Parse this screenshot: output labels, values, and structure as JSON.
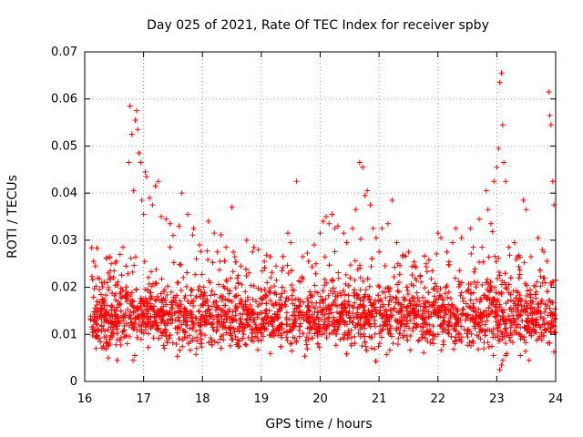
{
  "chart_data": {
    "type": "scatter",
    "title": "Day 025 of 2021, Rate Of TEC Index for receiver spby",
    "xlabel": "GPS time / hours",
    "ylabel": "ROTI / TECUs",
    "xlim": [
      16,
      24
    ],
    "ylim": [
      0,
      0.07
    ],
    "xticks": [
      16,
      17,
      18,
      19,
      20,
      21,
      22,
      23,
      24
    ],
    "xtick_labels": [
      "16",
      "17",
      "18",
      "19",
      "20",
      "21",
      "22",
      "23",
      "24"
    ],
    "yticks": [
      0,
      0.01,
      0.02,
      0.03,
      0.04,
      0.05,
      0.06,
      0.07
    ],
    "ytick_labels": [
      "0",
      "0.01",
      "0.02",
      "0.03",
      "0.04",
      "0.05",
      "0.06",
      "0.07"
    ],
    "grid": true,
    "marker": "plus",
    "color": "#ff0000",
    "series": [
      {
        "name": "ROTI",
        "points": [
          [
            16.15,
            0.0255
          ],
          [
            16.18,
            0.0245
          ],
          [
            16.22,
            0.022
          ],
          [
            16.25,
            0.0195
          ],
          [
            16.3,
            0.0175
          ],
          [
            16.38,
            0.021
          ],
          [
            16.42,
            0.0265
          ],
          [
            16.45,
            0.025
          ],
          [
            16.5,
            0.0235
          ],
          [
            16.55,
            0.0205
          ],
          [
            16.6,
            0.027
          ],
          [
            16.65,
            0.0285
          ],
          [
            16.7,
            0.0245
          ],
          [
            16.75,
            0.0465
          ],
          [
            16.77,
            0.0585
          ],
          [
            16.8,
            0.0525
          ],
          [
            16.83,
            0.0405
          ],
          [
            16.86,
            0.0555
          ],
          [
            16.88,
            0.0575
          ],
          [
            16.9,
            0.0535
          ],
          [
            16.92,
            0.0485
          ],
          [
            16.95,
            0.0465
          ],
          [
            16.97,
            0.0385
          ],
          [
            17.0,
            0.0355
          ],
          [
            17.03,
            0.0445
          ],
          [
            17.05,
            0.0435
          ],
          [
            17.1,
            0.039
          ],
          [
            17.15,
            0.0375
          ],
          [
            17.2,
            0.0415
          ],
          [
            17.25,
            0.0425
          ],
          [
            17.3,
            0.035
          ],
          [
            17.38,
            0.0345
          ],
          [
            17.45,
            0.0335
          ],
          [
            17.5,
            0.031
          ],
          [
            17.6,
            0.033
          ],
          [
            17.65,
            0.04
          ],
          [
            17.75,
            0.0355
          ],
          [
            17.85,
            0.0325
          ],
          [
            17.95,
            0.029
          ],
          [
            18.1,
            0.034
          ],
          [
            18.2,
            0.0315
          ],
          [
            18.25,
            0.0275
          ],
          [
            18.3,
            0.0255
          ],
          [
            18.4,
            0.0285
          ],
          [
            18.5,
            0.037
          ],
          [
            18.55,
            0.0265
          ],
          [
            18.65,
            0.0245
          ],
          [
            18.75,
            0.03
          ],
          [
            18.85,
            0.0275
          ],
          [
            18.95,
            0.028
          ],
          [
            19.05,
            0.0255
          ],
          [
            19.15,
            0.0265
          ],
          [
            19.25,
            0.0245
          ],
          [
            19.35,
            0.0235
          ],
          [
            19.45,
            0.0315
          ],
          [
            19.5,
            0.0295
          ],
          [
            19.6,
            0.0425
          ],
          [
            19.7,
            0.0265
          ],
          [
            19.8,
            0.0255
          ],
          [
            19.9,
            0.029
          ],
          [
            20.0,
            0.0315
          ],
          [
            20.05,
            0.034
          ],
          [
            20.1,
            0.035
          ],
          [
            20.15,
            0.0335
          ],
          [
            20.2,
            0.0355
          ],
          [
            20.25,
            0.0325
          ],
          [
            20.3,
            0.033
          ],
          [
            20.4,
            0.0315
          ],
          [
            20.45,
            0.0295
          ],
          [
            20.55,
            0.0325
          ],
          [
            20.6,
            0.0365
          ],
          [
            20.67,
            0.0465
          ],
          [
            20.72,
            0.0455
          ],
          [
            20.76,
            0.0395
          ],
          [
            20.8,
            0.0405
          ],
          [
            20.85,
            0.0375
          ],
          [
            20.9,
            0.0325
          ],
          [
            20.95,
            0.0305
          ],
          [
            21.0,
            0.0275
          ],
          [
            21.05,
            0.0325
          ],
          [
            21.15,
            0.0335
          ],
          [
            21.22,
            0.0385
          ],
          [
            21.3,
            0.0295
          ],
          [
            21.4,
            0.0265
          ],
          [
            21.5,
            0.0275
          ],
          [
            21.6,
            0.0245
          ],
          [
            21.7,
            0.0225
          ],
          [
            21.8,
            0.025
          ],
          [
            21.9,
            0.0235
          ],
          [
            22.0,
            0.0315
          ],
          [
            22.05,
            0.0305
          ],
          [
            22.15,
            0.0275
          ],
          [
            22.25,
            0.0295
          ],
          [
            22.3,
            0.0325
          ],
          [
            22.4,
            0.0305
          ],
          [
            22.55,
            0.0325
          ],
          [
            22.6,
            0.0285
          ],
          [
            22.7,
            0.0345
          ],
          [
            22.75,
            0.0285
          ],
          [
            22.82,
            0.0405
          ],
          [
            22.85,
            0.0365
          ],
          [
            22.9,
            0.0335
          ],
          [
            22.95,
            0.0425
          ],
          [
            23.0,
            0.0455
          ],
          [
            23.03,
            0.0495
          ],
          [
            23.05,
            0.0635
          ],
          [
            23.08,
            0.0655
          ],
          [
            23.1,
            0.0545
          ],
          [
            23.12,
            0.0465
          ],
          [
            23.15,
            0.0425
          ],
          [
            23.2,
            0.0285
          ],
          [
            23.3,
            0.0295
          ],
          [
            23.35,
            0.0265
          ],
          [
            23.45,
            0.0385
          ],
          [
            23.5,
            0.0365
          ],
          [
            23.58,
            0.0265
          ],
          [
            23.7,
            0.0305
          ],
          [
            23.8,
            0.0275
          ],
          [
            23.88,
            0.0615
          ],
          [
            23.9,
            0.0565
          ],
          [
            23.92,
            0.0545
          ],
          [
            23.95,
            0.0425
          ],
          [
            23.97,
            0.0375
          ],
          [
            24.0,
            0.0215
          ],
          [
            16.82,
            0.0045
          ],
          [
            16.85,
            0.0055
          ],
          [
            16.55,
            0.0045
          ],
          [
            23.05,
            0.0025
          ],
          [
            23.08,
            0.0035
          ],
          [
            23.1,
            0.0045
          ],
          [
            23.15,
            0.0055
          ],
          [
            23.4,
            0.0055
          ],
          [
            23.55,
            0.0045
          ],
          [
            16.4,
            0.005
          ]
        ]
      }
    ],
    "dense_band": {
      "description": "dense background scatter of points",
      "x_range": [
        16.1,
        24.0
      ],
      "y_center": 0.0135,
      "y_spread": 0.0055,
      "count": 2600
    }
  }
}
